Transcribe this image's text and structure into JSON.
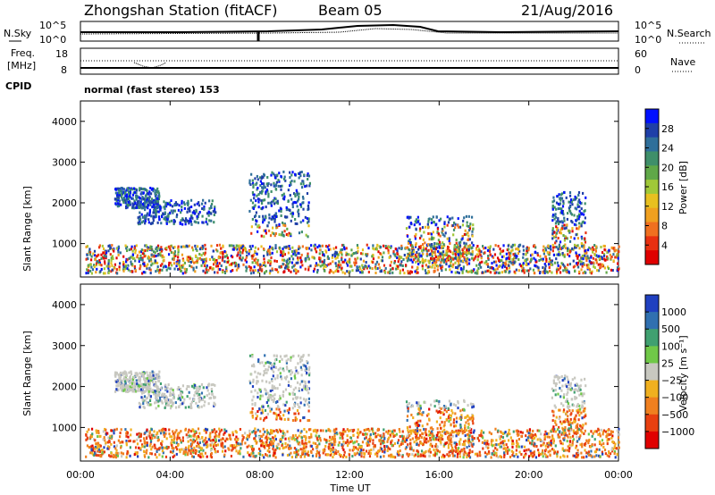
{
  "header": {
    "station": "Zhongshan Station (fitACF)",
    "beam": "Beam 05",
    "date": "21/Aug/2016"
  },
  "noise_panel": {
    "left_label": "N.Sky",
    "right_label": "N.Search",
    "left_ticks": [
      "10^5",
      "10^0"
    ],
    "right_ticks": [
      "10^5",
      "10^0"
    ]
  },
  "freq_panel": {
    "left_label_1": "Freq.",
    "left_label_2": "[MHz]",
    "left_ticks": [
      "18",
      "8"
    ],
    "right_label": "Nave",
    "right_ticks": [
      "60",
      "0"
    ]
  },
  "cpid": {
    "label": "CPID",
    "text": "normal (fast stereo) 153"
  },
  "chart_data": [
    {
      "type": "heatmap",
      "name": "power",
      "ylabel": "Slant Range [km]",
      "yticks": [
        "4000",
        "3000",
        "2000",
        "1000"
      ],
      "ylim": [
        180,
        4500
      ],
      "colorbar_label": "Power [dB]",
      "colorbar_ticks": [
        "28",
        "24",
        "20",
        "16",
        "12",
        "8",
        "4"
      ],
      "colors": [
        "#0010ff",
        "#1f3fa8",
        "#2f6f9a",
        "#3f8f6a",
        "#60a848",
        "#a0c838",
        "#e8c020",
        "#f0a020",
        "#f07020",
        "#e83010",
        "#e00000"
      ]
    },
    {
      "type": "heatmap",
      "name": "velocity",
      "ylabel": "Slant Range [km]",
      "yticks": [
        "4000",
        "3000",
        "2000",
        "1000"
      ],
      "ylim": [
        180,
        4500
      ],
      "colorbar_label": "Velocity [m s⁻¹]",
      "colorbar_ticks": [
        "1000",
        "500",
        "100",
        "25",
        "−25",
        "−100",
        "−500",
        "−1000"
      ],
      "colors": [
        "#2040c0",
        "#3070b0",
        "#40a070",
        "#70c848",
        "#c8c8c0",
        "#f0b020",
        "#f08020",
        "#e84010",
        "#e00000"
      ]
    }
  ],
  "xaxis": {
    "ticks": [
      "00:00",
      "04:00",
      "08:00",
      "12:00",
      "16:00",
      "20:00",
      "00:00"
    ],
    "label": "Time UT"
  }
}
